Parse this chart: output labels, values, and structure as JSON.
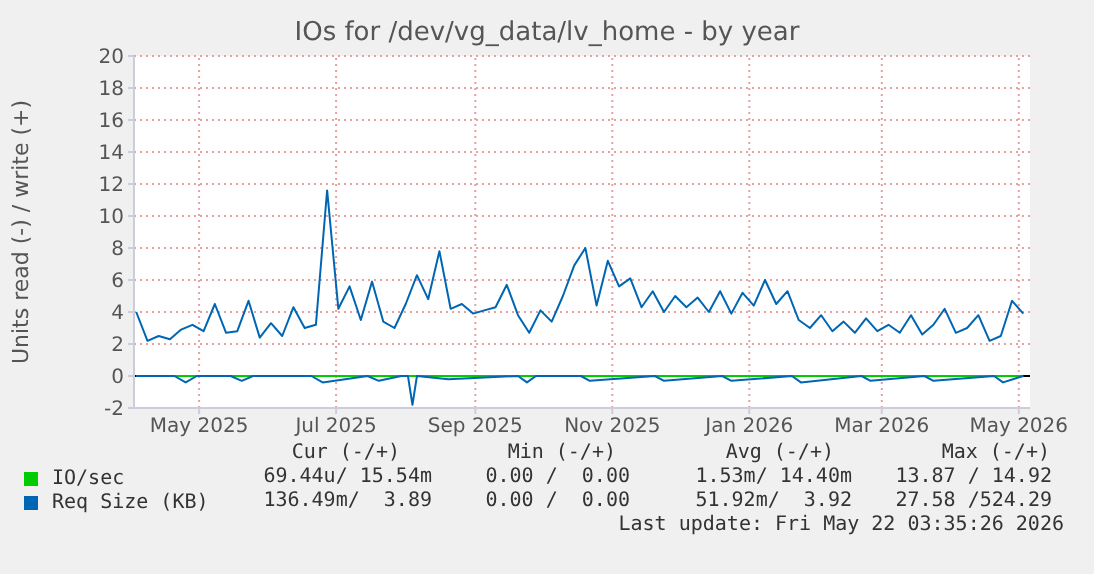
{
  "chart_data": {
    "type": "line",
    "title": "IOs for /dev/vg_data/lv_home - by year",
    "ylabel": "Units read (-) / write (+)",
    "xlim": [
      "2025-04-02",
      "2026-05-06"
    ],
    "xticks": [
      {
        "value": "2025-05-01",
        "label": "May 2025"
      },
      {
        "value": "2025-07-01",
        "label": "Jul 2025"
      },
      {
        "value": "2025-09-01",
        "label": "Sep 2025"
      },
      {
        "value": "2025-11-01",
        "label": "Nov 2025"
      },
      {
        "value": "2026-01-01",
        "label": "Jan 2026"
      },
      {
        "value": "2026-03-01",
        "label": "Mar 2026"
      },
      {
        "value": "2026-05-01",
        "label": "May 2026"
      }
    ],
    "ylim": [
      -2,
      20
    ],
    "yticks": [
      -2,
      0,
      2,
      4,
      6,
      8,
      10,
      12,
      14,
      16,
      18,
      20
    ],
    "grid": true,
    "legend": "bottom",
    "ref_lines": [
      {
        "axis": "y",
        "value": 0,
        "color": "#000000"
      }
    ],
    "series": [
      {
        "name": "IO/sec",
        "color": "#00cc00",
        "x": [
          "2025-04-03",
          "2026-05-03"
        ],
        "values": [
          0,
          0
        ]
      },
      {
        "name": "Req Size (KB)",
        "color": "#0066b3",
        "x": [
          "2025-04-03",
          "2025-04-08",
          "2025-04-13",
          "2025-04-18",
          "2025-04-23",
          "2025-04-28",
          "2025-05-03",
          "2025-05-08",
          "2025-05-13",
          "2025-05-18",
          "2025-05-23",
          "2025-05-28",
          "2025-06-02",
          "2025-06-07",
          "2025-06-12",
          "2025-06-17",
          "2025-06-22",
          "2025-06-27",
          "2025-07-02",
          "2025-07-07",
          "2025-07-12",
          "2025-07-17",
          "2025-07-22",
          "2025-07-27",
          "2025-08-01",
          "2025-08-06",
          "2025-08-11",
          "2025-08-16",
          "2025-08-21",
          "2025-08-26",
          "2025-08-31",
          "2025-09-05",
          "2025-09-10",
          "2025-09-15",
          "2025-09-20",
          "2025-09-25",
          "2025-09-30",
          "2025-10-05",
          "2025-10-10",
          "2025-10-15",
          "2025-10-20",
          "2025-10-25",
          "2025-10-30",
          "2025-11-04",
          "2025-11-09",
          "2025-11-14",
          "2025-11-19",
          "2025-11-24",
          "2025-11-29",
          "2025-12-04",
          "2025-12-09",
          "2025-12-14",
          "2025-12-19",
          "2025-12-24",
          "2025-12-29",
          "2026-01-03",
          "2026-01-08",
          "2026-01-13",
          "2026-01-18",
          "2026-01-23",
          "2026-01-28",
          "2026-02-02",
          "2026-02-07",
          "2026-02-12",
          "2026-02-17",
          "2026-02-22",
          "2026-02-27",
          "2026-03-04",
          "2026-03-09",
          "2026-03-14",
          "2026-03-19",
          "2026-03-24",
          "2026-03-29",
          "2026-04-03",
          "2026-04-08",
          "2026-04-13",
          "2026-04-18",
          "2026-04-23",
          "2026-04-28",
          "2026-05-03"
        ],
        "values": [
          4.0,
          2.2,
          2.5,
          2.3,
          2.9,
          3.2,
          2.8,
          4.5,
          2.7,
          2.8,
          4.7,
          2.4,
          3.3,
          2.5,
          4.3,
          3.0,
          3.2,
          11.6,
          4.2,
          5.6,
          3.5,
          5.9,
          3.4,
          3.0,
          4.5,
          6.3,
          4.8,
          7.8,
          4.2,
          4.5,
          3.9,
          4.1,
          4.3,
          5.7,
          3.8,
          2.7,
          4.1,
          3.4,
          5.0,
          6.9,
          8.0,
          4.4,
          7.2,
          5.6,
          6.1,
          4.3,
          5.3,
          4.0,
          5.0,
          4.3,
          4.9,
          4.0,
          5.3,
          3.9,
          5.2,
          4.4,
          6.0,
          4.5,
          5.3,
          3.5,
          3.0,
          3.8,
          2.8,
          3.4,
          2.7,
          3.6,
          2.8,
          3.2,
          2.7,
          3.8,
          2.6,
          3.2,
          4.2,
          2.7,
          3.0,
          3.8,
          2.2,
          2.5,
          4.7,
          3.9
        ]
      },
      {
        "color": "#0066b3",
        "x": [
          "2025-04-03",
          "2025-04-20",
          "2025-04-25",
          "2025-04-30",
          "2025-05-15",
          "2025-05-20",
          "2025-05-25",
          "2025-06-20",
          "2025-06-25",
          "2025-07-15",
          "2025-07-20",
          "2025-07-30",
          "2025-08-02",
          "2025-08-04",
          "2025-08-06",
          "2025-08-20",
          "2025-09-20",
          "2025-09-24",
          "2025-09-28",
          "2025-10-18",
          "2025-10-22",
          "2025-11-20",
          "2025-11-24",
          "2025-12-20",
          "2025-12-24",
          "2026-01-20",
          "2026-01-24",
          "2026-02-20",
          "2026-02-24",
          "2026-03-20",
          "2026-03-24",
          "2026-04-20",
          "2026-04-24",
          "2026-05-03"
        ],
        "values": [
          0,
          0,
          -0.4,
          0,
          0,
          -0.3,
          0,
          0,
          -0.4,
          0,
          -0.3,
          0,
          0,
          -1.8,
          0,
          -0.2,
          0,
          -0.4,
          0,
          0,
          -0.3,
          0,
          -0.3,
          0,
          -0.3,
          0,
          -0.4,
          0,
          -0.3,
          0,
          -0.3,
          0,
          -0.4,
          0
        ]
      }
    ],
    "annotations": [
      "Cur (-/+)",
      "Min (-/+)",
      "Avg (-/+)",
      "Max (-/+)",
      "69.44u/ 15.54m",
      "0.00 /  0.00",
      "1.53m/ 14.40m",
      "13.87 / 14.92",
      "136.49m/  3.89",
      "0.00 /  0.00",
      "51.92m/  3.92",
      "27.58 /524.29",
      "Last update: Fri May 22 03:35:26 2026"
    ]
  }
}
